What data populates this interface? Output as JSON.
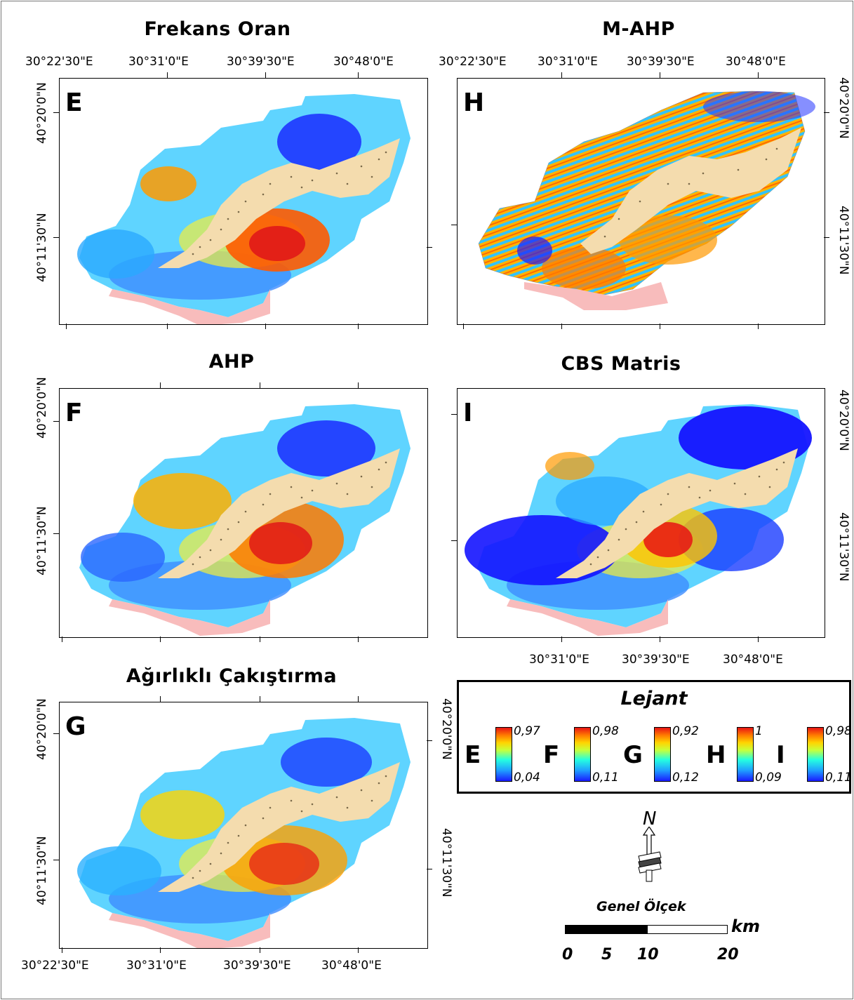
{
  "panels": [
    {
      "id": "E",
      "title": "Frekans Oran",
      "letter": "E"
    },
    {
      "id": "H",
      "title": "M-AHP",
      "letter": "H"
    },
    {
      "id": "F",
      "title": "AHP",
      "letter": "F"
    },
    {
      "id": "I",
      "title": "CBS Matris",
      "letter": "I"
    },
    {
      "id": "G",
      "title": "Ağırlıklı Çakıştırma",
      "letter": "G"
    }
  ],
  "coordinates": {
    "lon_1": "30°22'30\"E",
    "lon_2": "30°31'0\"E",
    "lon_3": "30°39'30\"E",
    "lon_4": "30°48'0\"E",
    "lat_1": "40°20'0\"N",
    "lat_2": "40°11'30\"N"
  },
  "legend": {
    "title": "Lejant",
    "items": [
      {
        "letter": "E",
        "max": "0,97",
        "min": "0,04"
      },
      {
        "letter": "F",
        "max": "0,98",
        "min": "0,11"
      },
      {
        "letter": "G",
        "max": "0,92",
        "min": "0,12"
      },
      {
        "letter": "H",
        "max": "1",
        "min": "0,09"
      },
      {
        "letter": "I",
        "max": "0,98",
        "min": "0,11"
      }
    ],
    "color_low": "#1a1aff",
    "color_high": "#e81414"
  },
  "north_arrow": {
    "label": "N"
  },
  "scale_bar": {
    "title": "Genel Ölçek",
    "unit": "km",
    "labels": [
      "0",
      "5",
      "10",
      "20"
    ]
  }
}
